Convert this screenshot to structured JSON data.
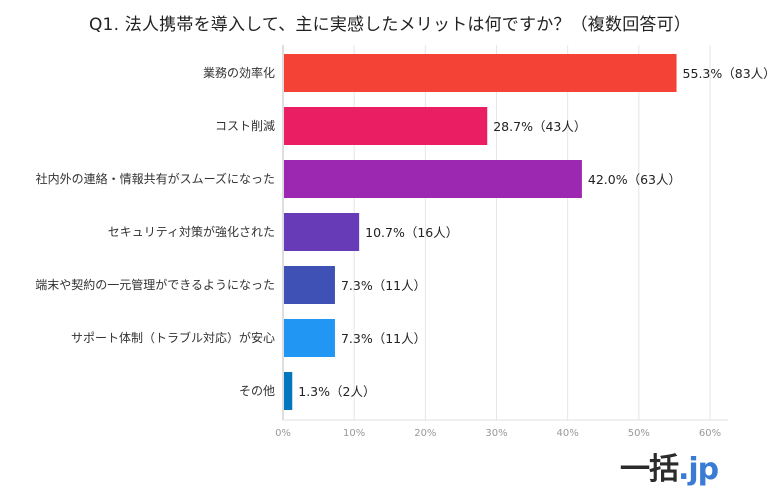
{
  "chart_data": {
    "type": "bar",
    "orientation": "horizontal",
    "title": "Q1. 法人携帯を導入して、主に実感したメリットは何ですか？（複数回答可）",
    "categories": [
      "業務の効率化",
      "コスト削減",
      "社内外の連絡・情報共有がスムーズになった",
      "セキュリティ対策が強化された",
      "端末や契約の一元管理ができるようになった",
      "サポート体制（トラブル対応）が安心",
      "その他"
    ],
    "values": [
      55.3,
      28.7,
      42.0,
      10.7,
      7.3,
      7.3,
      1.3
    ],
    "data_labels": [
      "55.3%（83人）",
      "28.7%（43人）",
      "42.0%（63人）",
      "10.7%（16人）",
      "7.3%（11人）",
      "7.3%（11人）",
      "1.3%（2人）"
    ],
    "colors": [
      "#f44336",
      "#e91e63",
      "#9c27b0",
      "#673ab7",
      "#3f51b5",
      "#2196f3",
      "#0277bd"
    ],
    "xlim": [
      0,
      60
    ],
    "xticks": [
      0,
      10,
      20,
      30,
      40,
      50,
      60
    ],
    "xtick_labels": [
      "0%",
      "10%",
      "20%",
      "30%",
      "40%",
      "50%",
      "60%"
    ],
    "grid": true,
    "xlabel": "",
    "ylabel": ""
  },
  "logo": {
    "kanji": "一括",
    "domain": ".jp"
  }
}
